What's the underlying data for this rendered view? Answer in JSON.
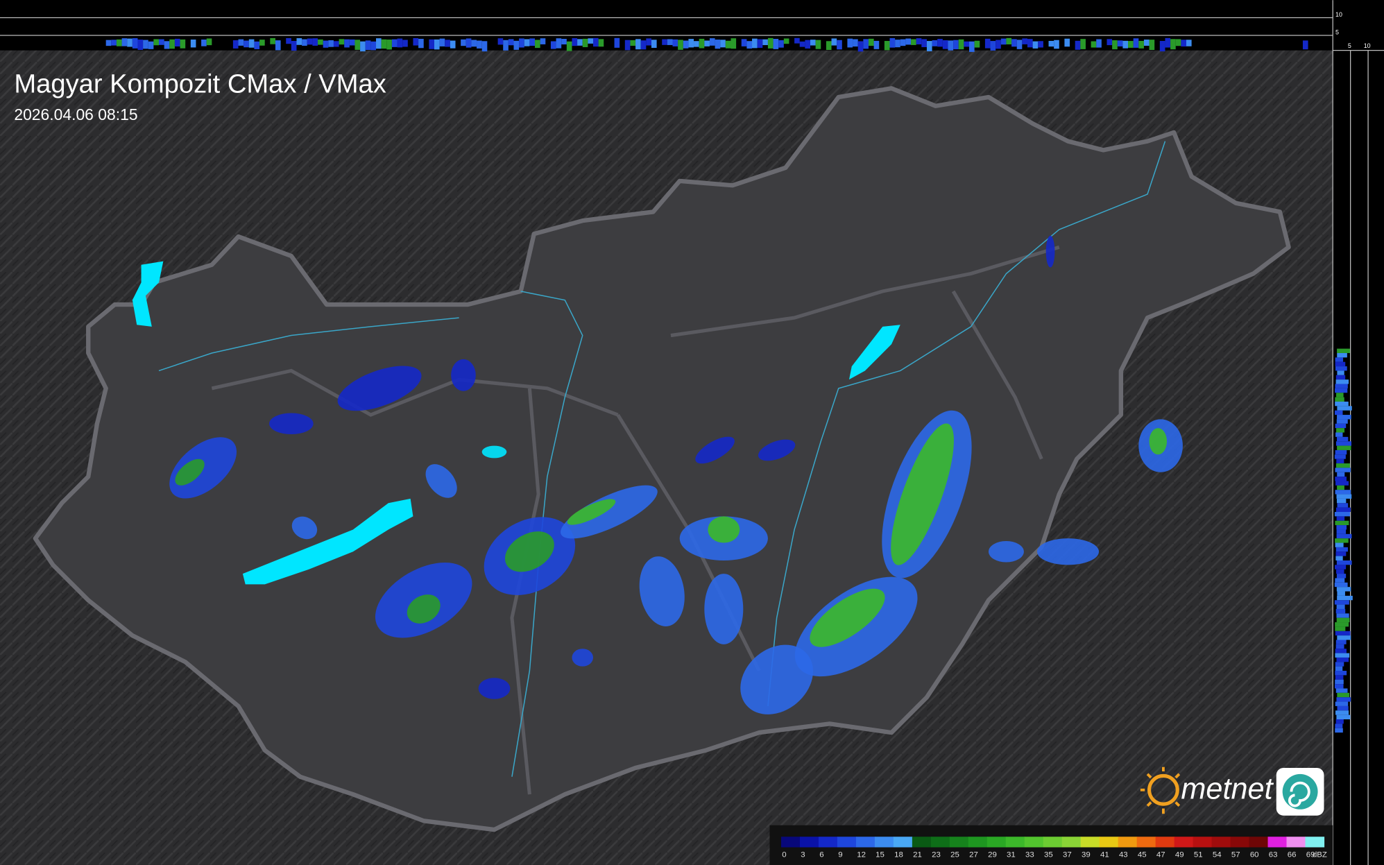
{
  "header": {
    "title": "Magyar Kompozit CMax / VMax",
    "timestamp": "2026.04.06 08:15"
  },
  "logo": "metnet",
  "profile_labels": {
    "top": [
      "10",
      "5"
    ],
    "right": [
      "5",
      "10"
    ]
  },
  "legend": {
    "labels": [
      "0",
      "3",
      "6",
      "9",
      "12",
      "15",
      "18",
      "21",
      "23",
      "25",
      "27",
      "29",
      "31",
      "33",
      "35",
      "37",
      "39",
      "41",
      "43",
      "45",
      "47",
      "49",
      "51",
      "54",
      "57",
      "60",
      "63",
      "66",
      "69"
    ],
    "colors": [
      "#08087a",
      "#0a12a8",
      "#1428c8",
      "#1e46dc",
      "#2c68e8",
      "#3c8cf0",
      "#4aa8f4",
      "#0a5a14",
      "#0e6e18",
      "#16821c",
      "#1e9620",
      "#2aa824",
      "#3cb82a",
      "#52c42e",
      "#6ccc32",
      "#8ad436",
      "#c8dc28",
      "#e8c814",
      "#f09a10",
      "#ee6a10",
      "#e03a10",
      "#d01818",
      "#b81010",
      "#a00c0c",
      "#880808",
      "#6e0606",
      "#e020e0",
      "#f090f0",
      "#80f0f0"
    ],
    "unit": "dBZ"
  }
}
